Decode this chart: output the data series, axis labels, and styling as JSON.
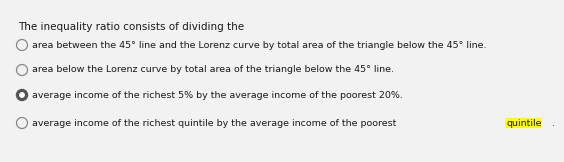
{
  "title": "The inequality ratio consists of dividing the",
  "options": [
    "area between the 45° line and the Lorenz curve by total area of the triangle below the 45° line.",
    "area below the Lorenz curve by total area of the triangle below the 45° line.",
    "average income of the richest 5% by the average income of the poorest 20%.",
    "average income of the richest quintile by the average income of the poorest quintile."
  ],
  "selected": 2,
  "highlight_word": "quintile",
  "highlight_option_idx": 3,
  "bg_color": "#f2f2f2",
  "text_color": "#1a1a1a",
  "title_fontsize": 7.5,
  "option_fontsize": 6.8,
  "radio_fill_color": "#555555",
  "radio_edge_color": "#888888",
  "highlight_color": "#ffff00"
}
